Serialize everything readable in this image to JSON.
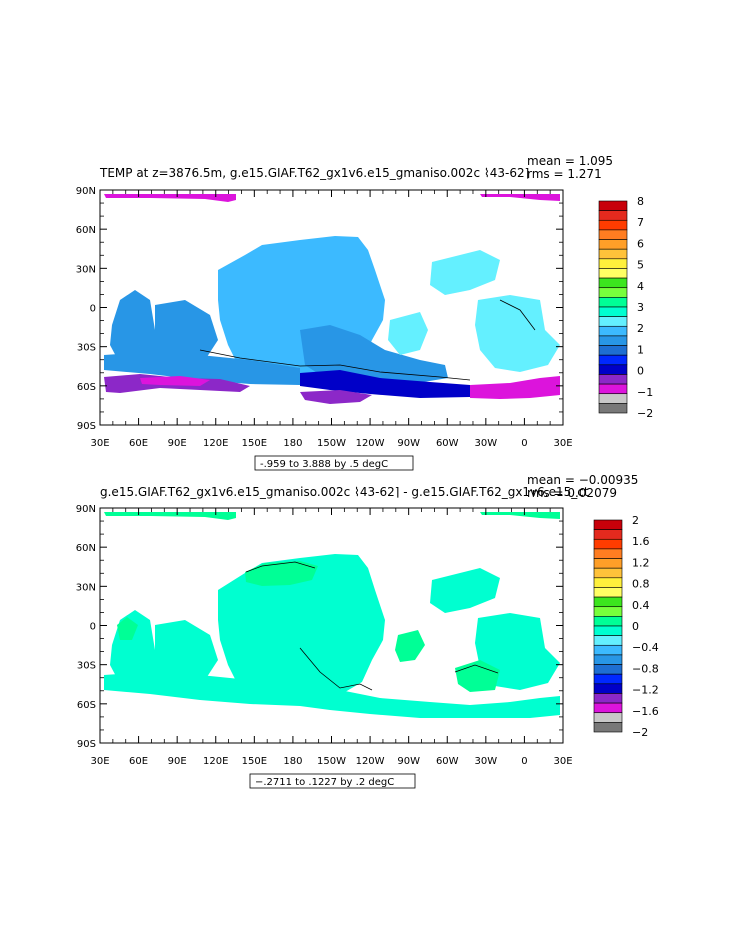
{
  "chart_data": [
    {
      "type": "heatmap",
      "title": "TEMP at z=3876.5m, g.e15.GIAF.T62_gx1v6.e15_gmaniso.002c ⌇43-62⌉",
      "stats": {
        "mean": "mean = 1.095",
        "rms": "rms = 1.271"
      },
      "xticks": [
        "30E",
        "60E",
        "90E",
        "120E",
        "150E",
        "180",
        "150W",
        "120W",
        "90W",
        "60W",
        "30W",
        "0",
        "30E"
      ],
      "yticks": [
        "90N",
        "60N",
        "30N",
        "0",
        "30S",
        "60S",
        "90S"
      ],
      "contour_info": "-.959 to 3.888 by .5 degC",
      "colorbar": {
        "labels": [
          "8",
          "7",
          "6",
          "5",
          "4",
          "3",
          "2",
          "1",
          "0",
          "−1",
          "−2"
        ],
        "colors": [
          "#c8000a",
          "#e42a1e",
          "#ff3c00",
          "#ff7d21",
          "#ff9f28",
          "#ffc23a",
          "#fff03c",
          "#ffff64",
          "#3ce61e",
          "#78ff3c",
          "#00ff96",
          "#00ffd0",
          "#64f0ff",
          "#3cbaff",
          "#2896e6",
          "#1e6ed2",
          "#0028ff",
          "#0000c8",
          "#8c28c8",
          "#dc14dc",
          "#c8c8c8",
          "#787878"
        ]
      },
      "field_colors": {
        "top_cap": "#dc14dc",
        "pacific": "#3cbaff",
        "indian": "#2896e6",
        "atlantic": "#64f0ff",
        "south_band": "#0000c8",
        "south_purple": "#8c28c8",
        "south_magenta": "#dc14dc"
      }
    },
    {
      "type": "heatmap",
      "title": "g.e15.GIAF.T62_gx1v6.e15_gmaniso.002c ⌇43-62⌉ - g.e15.GIAF.T62_gx1v6.e15_ct",
      "stats": {
        "mean": "mean = −0.00935",
        "rms": "rms = 0.02079"
      },
      "xticks": [
        "30E",
        "60E",
        "90E",
        "120E",
        "150E",
        "180",
        "150W",
        "120W",
        "90W",
        "60W",
        "30W",
        "0",
        "30E"
      ],
      "yticks": [
        "90N",
        "60N",
        "30N",
        "0",
        "30S",
        "60S",
        "90S"
      ],
      "contour_info": "−.2711 to .1227 by .2 degC",
      "colorbar": {
        "labels": [
          "2",
          "1.6",
          "1.2",
          "0.8",
          "0.4",
          "0",
          "−0.4",
          "−0.8",
          "−1.2",
          "−1.6",
          "−2"
        ],
        "colors": [
          "#c8000a",
          "#e42a1e",
          "#ff3c00",
          "#ff7d21",
          "#ff9f28",
          "#ffc23a",
          "#fff03c",
          "#ffff64",
          "#3ce61e",
          "#78ff3c",
          "#00ff96",
          "#00ffd0",
          "#64f0ff",
          "#3cbaff",
          "#2896e6",
          "#1e6ed2",
          "#0028ff",
          "#0000c8",
          "#8c28c8",
          "#dc14dc",
          "#c8c8c8",
          "#787878"
        ]
      },
      "field_colors": {
        "main": "#00ffd0",
        "green": "#00ff96"
      }
    }
  ]
}
